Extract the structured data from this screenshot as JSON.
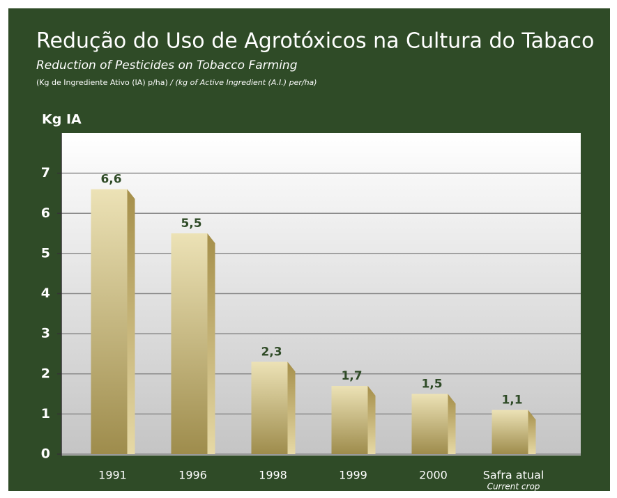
{
  "chart_data": {
    "type": "bar",
    "title": "Redução do Uso de Agrotóxicos na Cultura do Tabaco",
    "subtitle": "Reduction of Pesticides on Tobacco Farming",
    "note": "(Kg de Ingrediente Ativo (IA) p/ha)",
    "note_en": " / (kg of Active Ingredient (A.I.) per/ha)",
    "y_label": "Kg IA",
    "categories": [
      "1991",
      "1996",
      "1998",
      "1999",
      "2000",
      "Safra atual"
    ],
    "category_note": "Current crop",
    "values": [
      6.6,
      5.5,
      2.3,
      1.7,
      1.5,
      1.1
    ],
    "value_labels": [
      "6,6",
      "5,5",
      "2,3",
      "1,7",
      "1,5",
      "1,1"
    ],
    "color": "#c9b878",
    "ylim": [
      0,
      8
    ],
    "yticks": [
      0,
      1,
      2,
      3,
      4,
      5,
      6,
      7
    ],
    "grid": true
  }
}
